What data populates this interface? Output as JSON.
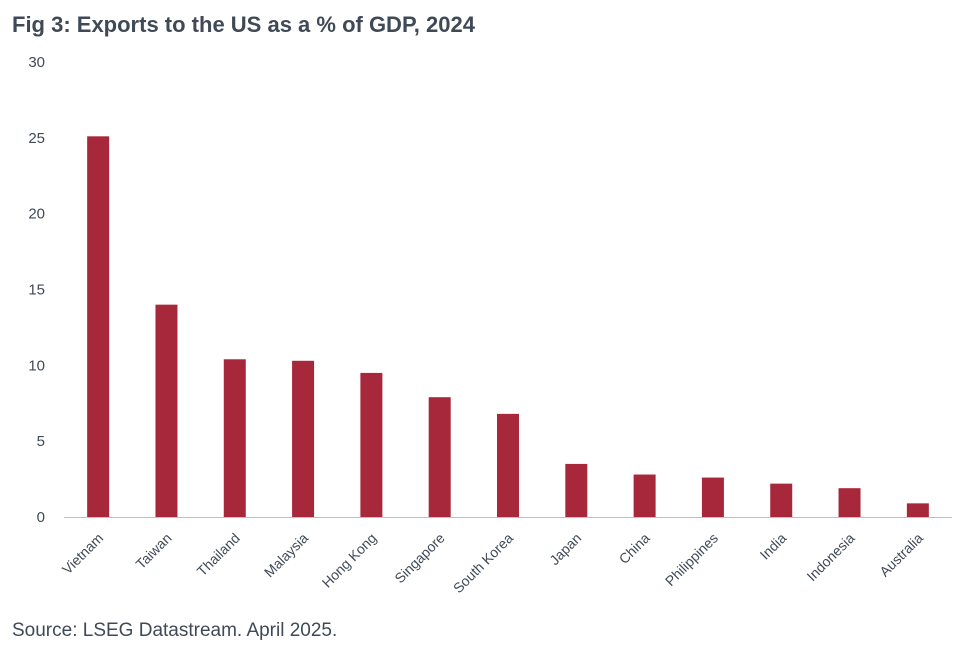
{
  "title": "Fig 3: Exports to the US as a % of GDP, 2024",
  "source": "Source: LSEG Datastream. April 2025.",
  "colors": {
    "bar": "#a8283b",
    "text": "#404a57",
    "axis": "#bfbfbf"
  },
  "chart_data": {
    "type": "bar",
    "title": "Fig 3: Exports to the US as a % of GDP, 2024",
    "xlabel": "",
    "ylabel": "",
    "ylim": [
      0,
      30
    ],
    "yticks": [
      0,
      5,
      10,
      15,
      20,
      25,
      30
    ],
    "grid": false,
    "legend": "none",
    "categories": [
      "Vietnam",
      "Taiwan",
      "Thailand",
      "Malaysia",
      "Hong Kong",
      "Singapore",
      "South Korea",
      "Japan",
      "China",
      "Philippines",
      "India",
      "Indonesia",
      "Australia"
    ],
    "values": [
      25.1,
      14.0,
      10.4,
      10.3,
      9.5,
      7.9,
      6.8,
      3.5,
      2.8,
      2.6,
      2.2,
      1.9,
      0.9
    ]
  }
}
